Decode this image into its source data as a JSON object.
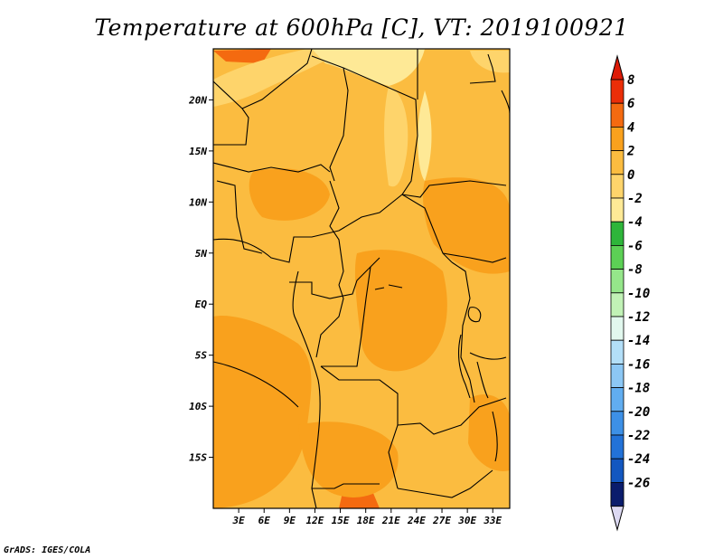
{
  "title": "Temperature at 600hPa [C], VT: 2019100921",
  "credit": "GrADS: IGES/COLA",
  "map": {
    "lon_range": [
      0,
      35
    ],
    "lat_range": [
      -20,
      25
    ],
    "lon_ticks": [
      {
        "value": 3,
        "label": "3E"
      },
      {
        "value": 6,
        "label": "6E"
      },
      {
        "value": 9,
        "label": "9E"
      },
      {
        "value": 12,
        "label": "12E"
      },
      {
        "value": 15,
        "label": "15E"
      },
      {
        "value": 18,
        "label": "18E"
      },
      {
        "value": 21,
        "label": "21E"
      },
      {
        "value": 24,
        "label": "24E"
      },
      {
        "value": 27,
        "label": "27E"
      },
      {
        "value": 30,
        "label": "30E"
      },
      {
        "value": 33,
        "label": "33E"
      }
    ],
    "lat_ticks": [
      {
        "value": 20,
        "label": "20N"
      },
      {
        "value": 15,
        "label": "15N"
      },
      {
        "value": 10,
        "label": "10N"
      },
      {
        "value": 5,
        "label": "5N"
      },
      {
        "value": 0,
        "label": "EQ"
      },
      {
        "value": -5,
        "label": "5S"
      },
      {
        "value": -10,
        "label": "10S"
      },
      {
        "value": -15,
        "label": "15S"
      }
    ],
    "base_color": "#fbbc40"
  },
  "colorbar": {
    "labels": [
      "8",
      "6",
      "4",
      "2",
      "0",
      "-2",
      "-4",
      "-6",
      "-8",
      "-10",
      "-12",
      "-14",
      "-16",
      "-18",
      "-20",
      "-22",
      "-24",
      "-26"
    ],
    "colors": [
      "#ea2e08",
      "#f46a10",
      "#f9a11d",
      "#fbbc40",
      "#fed46b",
      "#fee996",
      "#2eb53a",
      "#5cd055",
      "#95e68a",
      "#c1f2b6",
      "#e2f8ee",
      "#b3dff8",
      "#8cc7f4",
      "#61adf0",
      "#3d90e6",
      "#2272d8",
      "#1357c0",
      "#0c3b9e"
    ],
    "top_color": "#dd1b07",
    "bottom_color": "#0a1c6c",
    "bottom_tip_color": "#dcd9f2"
  }
}
